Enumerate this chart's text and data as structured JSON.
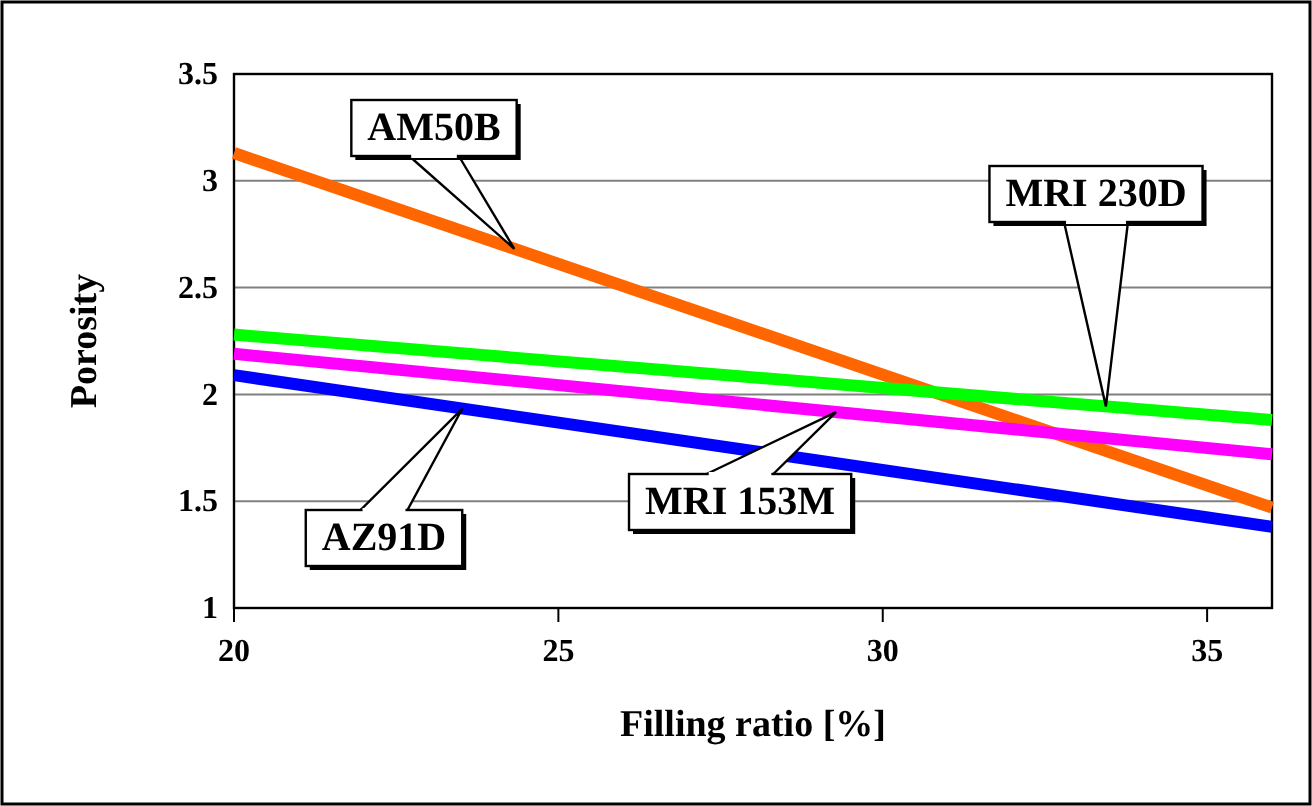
{
  "chart_data": {
    "type": "line",
    "xlabel": "Filling ratio [%]",
    "ylabel": "Porosity",
    "x": [
      20,
      36
    ],
    "series": [
      {
        "name": "AM50B",
        "color": "#ff6600",
        "values": [
          3.13,
          1.47
        ]
      },
      {
        "name": "MRI 230D",
        "color": "#00ff00",
        "values": [
          2.28,
          1.88
        ]
      },
      {
        "name": "MRI 153M",
        "color": "#ff00ff",
        "values": [
          2.19,
          1.72
        ]
      },
      {
        "name": "AZ91D",
        "color": "#0000ff",
        "values": [
          2.09,
          1.38
        ]
      }
    ],
    "xlim": [
      20,
      36
    ],
    "xticks": [
      20,
      25,
      30,
      35
    ],
    "ylim": [
      1,
      3.5
    ],
    "yticks": [
      1,
      1.5,
      2,
      2.5,
      3,
      3.5
    ],
    "grid": "y",
    "marker": "none",
    "line_style": "solid"
  }
}
